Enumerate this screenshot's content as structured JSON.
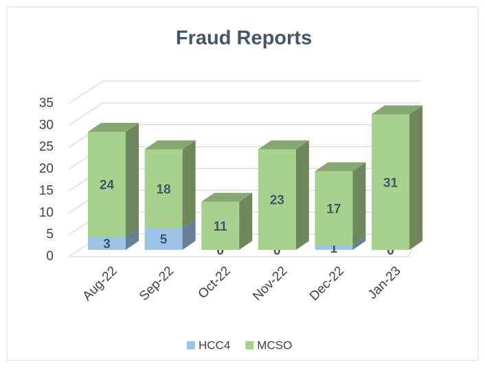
{
  "chart_data": {
    "type": "bar3d_stacked",
    "title": "Fraud Reports",
    "categories": [
      "Aug-22",
      "Sep-22",
      "Oct-22",
      "Nov-22",
      "Dec-22",
      "Jan-23"
    ],
    "series": [
      {
        "name": "HCC4",
        "color": "#9dc3e6",
        "values": [
          3,
          5,
          0,
          0,
          1,
          0
        ]
      },
      {
        "name": "MCSO",
        "color": "#a9d18e",
        "values": [
          24,
          18,
          11,
          23,
          17,
          31
        ]
      }
    ],
    "ylim": [
      0,
      35
    ],
    "yticks": [
      0,
      5,
      10,
      15,
      20,
      25,
      30,
      35
    ],
    "grid": true,
    "legend": "bottom"
  }
}
